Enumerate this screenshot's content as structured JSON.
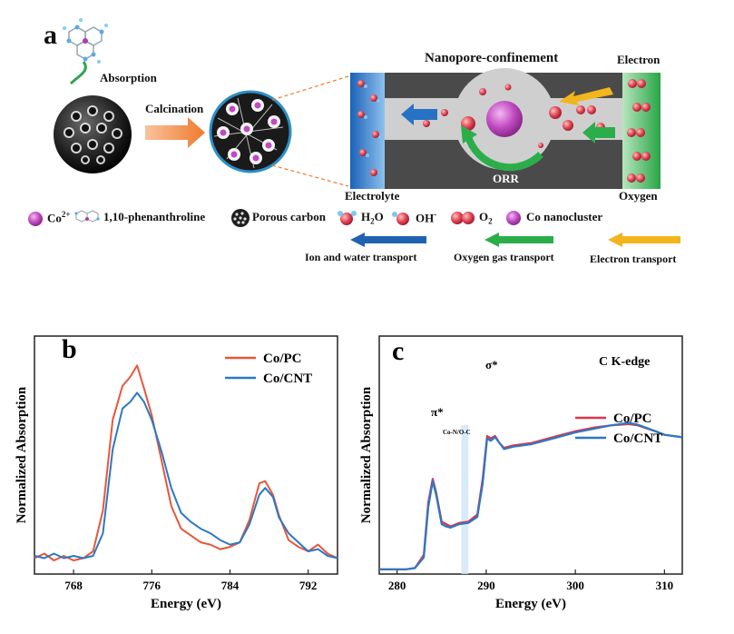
{
  "panel_a": {
    "letter": "a",
    "absorption": "Absorption",
    "calcination": "Calcination",
    "title": "Nanopore-confinement",
    "electron": "Electron",
    "electrolyte": "Electrolyte",
    "oxygen": "Oxygen",
    "orr": "ORR",
    "legend": {
      "co": "Co",
      "co_sup": "2+",
      "phen": "1,10-phenanthroline",
      "porous": "Porous carbon",
      "h2o_a": "H",
      "h2o_sub": "2",
      "h2o_b": "O",
      "oh": "OH",
      "oh_sup": "-",
      "o2": "O",
      "o2_sub": "2",
      "cocluster": "Co nanocluster"
    },
    "transport": {
      "ion": "Ion and water transport",
      "oxygen_gas": "Oxygen gas transport",
      "electron": "Electron transport"
    },
    "colors": {
      "ion": "#1f63b0",
      "oxygen_gas": "#2bae4a",
      "electron": "#f2b51c",
      "electrolyte": "#2d7fd0",
      "oxygen_band": "#3fb45a",
      "cobalt": "#b03ab0"
    }
  },
  "chart_data": [
    {
      "type": "line",
      "letter": "b",
      "xlabel": "Energy (eV)",
      "ylabel": "Normalized Absorption",
      "xlim": [
        764,
        795
      ],
      "ylim": [
        0,
        1.05
      ],
      "xticks": [
        768,
        776,
        784,
        792
      ],
      "series": [
        {
          "name": "Co/PC",
          "color": "#e8563b",
          "points": [
            [
              764,
              0.07
            ],
            [
              765,
              0.09
            ],
            [
              766,
              0.06
            ],
            [
              767,
              0.08
            ],
            [
              768,
              0.06
            ],
            [
              769,
              0.07
            ],
            [
              770,
              0.1
            ],
            [
              771,
              0.28
            ],
            [
              772,
              0.68
            ],
            [
              773,
              0.83
            ],
            [
              773.8,
              0.87
            ],
            [
              774.5,
              0.92
            ],
            [
              775.2,
              0.82
            ],
            [
              776,
              0.7
            ],
            [
              777,
              0.5
            ],
            [
              778,
              0.3
            ],
            [
              779,
              0.2
            ],
            [
              780,
              0.17
            ],
            [
              781,
              0.14
            ],
            [
              782,
              0.13
            ],
            [
              783,
              0.11
            ],
            [
              784,
              0.12
            ],
            [
              785,
              0.14
            ],
            [
              786,
              0.24
            ],
            [
              787,
              0.4
            ],
            [
              787.6,
              0.41
            ],
            [
              788.4,
              0.35
            ],
            [
              789,
              0.26
            ],
            [
              790,
              0.15
            ],
            [
              791,
              0.12
            ],
            [
              792,
              0.1
            ],
            [
              793,
              0.13
            ],
            [
              794,
              0.09
            ],
            [
              795,
              0.07
            ]
          ]
        },
        {
          "name": "Co/CNT",
          "color": "#2b78c4",
          "points": [
            [
              764,
              0.08
            ],
            [
              765,
              0.07
            ],
            [
              766,
              0.09
            ],
            [
              767,
              0.07
            ],
            [
              768,
              0.08
            ],
            [
              769,
              0.07
            ],
            [
              770,
              0.08
            ],
            [
              771,
              0.18
            ],
            [
              772,
              0.55
            ],
            [
              773,
              0.73
            ],
            [
              773.8,
              0.76
            ],
            [
              774.5,
              0.8
            ],
            [
              775.2,
              0.76
            ],
            [
              776,
              0.68
            ],
            [
              777,
              0.54
            ],
            [
              778,
              0.38
            ],
            [
              779,
              0.27
            ],
            [
              780,
              0.23
            ],
            [
              781,
              0.2
            ],
            [
              782,
              0.18
            ],
            [
              783,
              0.15
            ],
            [
              784,
              0.13
            ],
            [
              785,
              0.14
            ],
            [
              786,
              0.22
            ],
            [
              787,
              0.35
            ],
            [
              787.6,
              0.38
            ],
            [
              788.4,
              0.34
            ],
            [
              789,
              0.25
            ],
            [
              790,
              0.18
            ],
            [
              791,
              0.14
            ],
            [
              792,
              0.1
            ],
            [
              793,
              0.11
            ],
            [
              794,
              0.08
            ],
            [
              795,
              0.07
            ]
          ]
        }
      ]
    },
    {
      "type": "line",
      "letter": "c",
      "xlabel": "Energy (eV)",
      "ylabel": "Normalized Absorption",
      "annotation": "C K-edge",
      "peak_labels": [
        "π*",
        "Co-N/O-C",
        "σ*"
      ],
      "highlight_x": [
        287.2,
        288.0
      ],
      "xlim": [
        278,
        312
      ],
      "ylim": [
        0,
        1.0
      ],
      "xticks": [
        280,
        290,
        300,
        310
      ],
      "series": [
        {
          "name": "Co/PC",
          "color": "#e0334a",
          "points": [
            [
              278,
              0.02
            ],
            [
              281,
              0.02
            ],
            [
              282,
              0.025
            ],
            [
              283,
              0.08
            ],
            [
              283.5,
              0.3
            ],
            [
              284,
              0.4
            ],
            [
              284.4,
              0.34
            ],
            [
              285,
              0.22
            ],
            [
              285.5,
              0.21
            ],
            [
              286,
              0.2
            ],
            [
              287,
              0.215
            ],
            [
              288,
              0.22
            ],
            [
              289,
              0.25
            ],
            [
              289.6,
              0.4
            ],
            [
              290.1,
              0.58
            ],
            [
              290.5,
              0.57
            ],
            [
              291,
              0.58
            ],
            [
              291.5,
              0.55
            ],
            [
              292,
              0.53
            ],
            [
              293,
              0.54
            ],
            [
              295,
              0.55
            ],
            [
              298,
              0.58
            ],
            [
              300,
              0.6
            ],
            [
              302,
              0.615
            ],
            [
              304,
              0.625
            ],
            [
              306,
              0.63
            ],
            [
              307,
              0.625
            ],
            [
              309,
              0.6
            ],
            [
              310,
              0.585
            ],
            [
              312,
              0.575
            ]
          ]
        },
        {
          "name": "Co/CNT",
          "color": "#2b78c4",
          "points": [
            [
              278,
              0.02
            ],
            [
              281,
              0.02
            ],
            [
              282,
              0.025
            ],
            [
              283,
              0.07
            ],
            [
              283.5,
              0.28
            ],
            [
              284,
              0.39
            ],
            [
              284.4,
              0.33
            ],
            [
              285,
              0.21
            ],
            [
              285.5,
              0.2
            ],
            [
              286,
              0.195
            ],
            [
              287,
              0.21
            ],
            [
              288,
              0.215
            ],
            [
              289,
              0.24
            ],
            [
              289.6,
              0.38
            ],
            [
              290.1,
              0.57
            ],
            [
              290.5,
              0.56
            ],
            [
              291,
              0.575
            ],
            [
              291.5,
              0.55
            ],
            [
              292,
              0.525
            ],
            [
              293,
              0.535
            ],
            [
              295,
              0.545
            ],
            [
              298,
              0.575
            ],
            [
              300,
              0.595
            ],
            [
              302,
              0.61
            ],
            [
              304,
              0.625
            ],
            [
              306,
              0.635
            ],
            [
              307,
              0.628
            ],
            [
              309,
              0.6
            ],
            [
              310,
              0.585
            ],
            [
              312,
              0.575
            ]
          ]
        }
      ]
    }
  ]
}
